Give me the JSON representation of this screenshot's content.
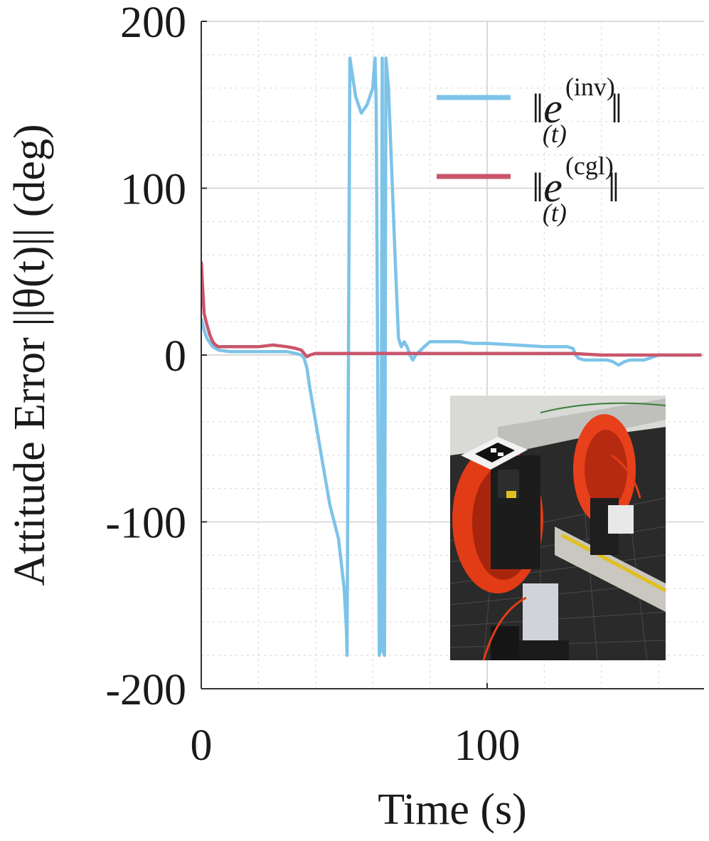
{
  "chart_data": {
    "type": "line",
    "xlabel": "Time (s)",
    "ylabel": "Attitude Error ||θ(t)|| (deg)",
    "xlim": [
      0,
      175
    ],
    "ylim": [
      -200,
      200
    ],
    "xticks": [
      0,
      100
    ],
    "xtick_labels": [
      "0",
      "100"
    ],
    "yticks": [
      -200,
      -100,
      0,
      100,
      200
    ],
    "ytick_labels": [
      "-200",
      "-100",
      "0",
      "100",
      "200"
    ],
    "grid": true,
    "minor_grid": true,
    "legend_position": "top-right",
    "series": [
      {
        "name": "||e(t)(inv)||",
        "legend_base": "e",
        "legend_sup": "(inv)",
        "legend_sub": "(t)",
        "color": "#7dc3e8",
        "x": [
          0,
          1,
          2,
          4,
          6,
          10,
          15,
          20,
          25,
          30,
          33,
          35,
          36,
          37,
          38,
          40,
          42,
          45,
          48,
          50,
          50.8,
          51,
          52,
          54,
          56,
          58,
          60,
          60.4,
          60.8,
          61.2,
          62.3,
          62.8,
          63.3,
          63.7,
          64.1,
          64.6,
          65.5,
          68,
          69,
          70,
          71,
          72,
          73,
          74,
          75,
          78,
          80,
          85,
          90,
          95,
          100,
          110,
          120,
          126,
          128,
          130,
          131,
          132,
          134,
          136,
          138,
          140,
          142,
          144,
          146,
          148,
          150,
          155,
          160,
          165,
          170,
          175
        ],
        "y": [
          22,
          15,
          10,
          5,
          3,
          2,
          2,
          2,
          2,
          2,
          1,
          0,
          -2,
          -8,
          -20,
          -40,
          -60,
          -90,
          -110,
          -140,
          -165,
          -180,
          178,
          155,
          145,
          150,
          160,
          170,
          178,
          150,
          -180,
          -175,
          178,
          -178,
          -180,
          178,
          160,
          50,
          10,
          5,
          8,
          5,
          0,
          -3,
          0,
          5,
          8,
          8,
          8,
          7,
          7,
          6,
          5,
          5,
          5,
          4,
          0,
          -2,
          -3,
          -3,
          -3,
          -3,
          -3,
          -4,
          -6,
          -4,
          -3,
          -3,
          0,
          0,
          0,
          0
        ]
      },
      {
        "name": "||e(t)(cgl)||",
        "legend_base": "e",
        "legend_sup": "(cgl)",
        "legend_sub": "(t)",
        "color": "#c9566c",
        "x": [
          0,
          0.5,
          1,
          2,
          3,
          4,
          5,
          6,
          8,
          10,
          15,
          20,
          25,
          30,
          33,
          35,
          36,
          37,
          38,
          40,
          45,
          50,
          60,
          70,
          80,
          90,
          100,
          110,
          120,
          130,
          140,
          150,
          160,
          170,
          175
        ],
        "y": [
          56,
          40,
          25,
          18,
          12,
          8,
          6,
          5,
          5,
          5,
          5,
          5,
          6,
          5,
          4,
          3,
          1,
          -1,
          0,
          1,
          1,
          1,
          1,
          1,
          1,
          1,
          1,
          1,
          1,
          1,
          0,
          0,
          0,
          0,
          0
        ]
      }
    ],
    "inset": {
      "subject": "photo of two magnetic-coil robots with red windings on a grid mat",
      "placement": "bottom-right"
    }
  }
}
